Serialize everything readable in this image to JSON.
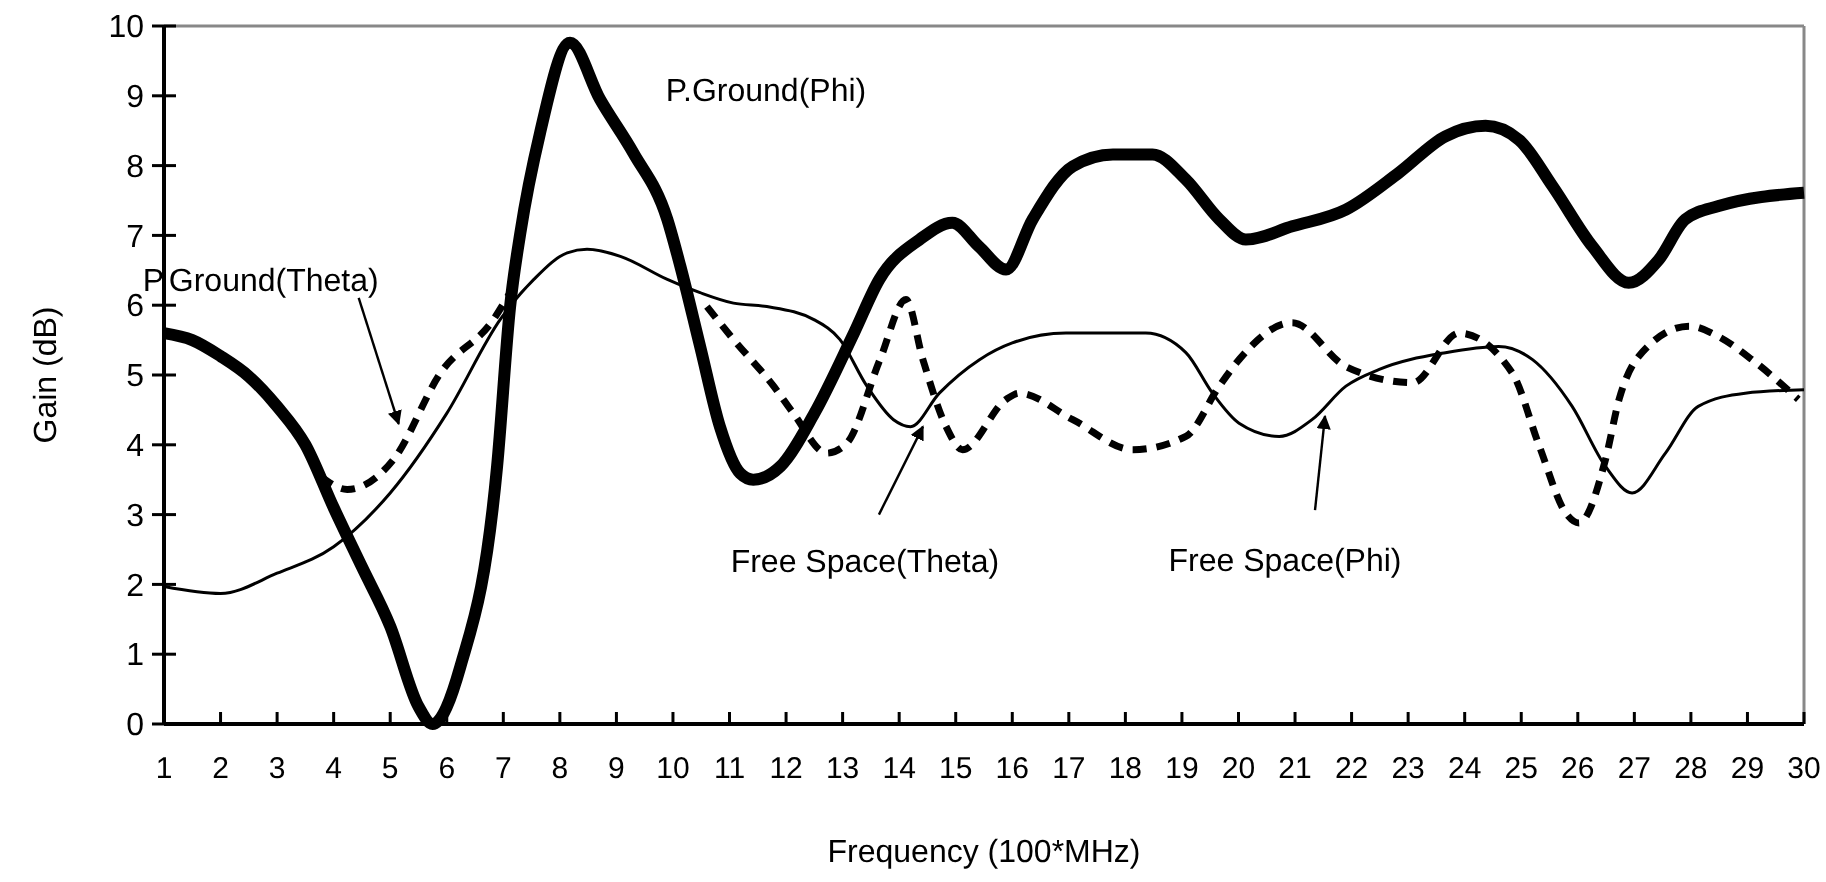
{
  "chart_data": {
    "type": "line",
    "xlabel": "Frequency (100*MHz)",
    "ylabel": "Gain (dB)",
    "xlim": [
      1,
      30
    ],
    "ylim": [
      0,
      10
    ],
    "xticks": [
      1,
      2,
      3,
      4,
      5,
      6,
      7,
      8,
      9,
      10,
      11,
      12,
      13,
      14,
      15,
      16,
      17,
      18,
      19,
      20,
      21,
      22,
      23,
      24,
      25,
      26,
      27,
      28,
      29,
      30
    ],
    "yticks": [
      0,
      1,
      2,
      3,
      4,
      5,
      6,
      7,
      8,
      9,
      10
    ],
    "grid": false,
    "series": [
      {
        "color": "#000000",
        "line_style": "solid",
        "x": [
          1,
          1.5,
          2,
          2.5,
          3,
          3.5,
          4,
          4.5,
          5,
          5.5,
          5.75,
          6.24,
          6.89,
          7.12,
          7.3,
          7.65,
          8.18,
          8.71,
          9.3,
          9.9,
          10.13,
          10.48,
          10.83,
          11.19,
          11.42,
          11.9,
          12.5,
          13.2,
          13.65,
          14.36,
          14.94,
          15.41,
          15.89,
          16.36,
          17.07,
          17.78,
          18.48,
          19.07,
          19.66,
          20.13,
          20.95,
          21.9,
          22.84,
          23.66,
          24.37,
          24.96,
          25.55,
          26.26,
          26.9,
          27.43,
          27.9,
          28.49,
          30
        ],
        "values": [
          5.6,
          5.5,
          5.27,
          4.98,
          4.55,
          4.0,
          3.1,
          2.25,
          1.4,
          0.25,
          0,
          0.82,
          3.69,
          5.98,
          7.03,
          8.47,
          9.76,
          8.95,
          8.18,
          7.23,
          6.56,
          5.41,
          4.26,
          3.59,
          3.5,
          3.69,
          4.45,
          5.6,
          6.37,
          6.94,
          7.18,
          6.84,
          6.51,
          7.23,
          7.99,
          8.16,
          8.16,
          7.8,
          7.23,
          6.94,
          7.13,
          7.37,
          7.9,
          8.42,
          8.57,
          8.37,
          7.71,
          6.84,
          6.32,
          6.65,
          7.23,
          7.42,
          7.61
        ]
      },
      {
        "color": "#000000",
        "line_style": "dashed",
        "x": [
          3.77,
          4.24,
          5.06,
          5.89,
          6.83,
          7.12,
          8.5,
          10.6,
          11.07,
          11.78,
          12.13,
          12.72,
          13.07,
          13.66,
          14.12,
          14.42,
          14.83,
          15.12,
          15.89,
          16.12,
          17.07,
          18.13,
          19.07,
          19.66,
          20.01,
          20.95,
          21.9,
          23.08,
          23.9,
          24.84,
          25.32,
          25.79,
          26.02,
          26.49,
          26.73,
          27.08,
          27.97,
          28.49,
          29.08,
          29.9
        ],
        "values": [
          3.55,
          3.36,
          3.79,
          5.03,
          5.8,
          6.18,
          null,
          5.98,
          5.51,
          4.84,
          4.45,
          3.88,
          4.02,
          5.22,
          6.08,
          5.22,
          4.26,
          3.93,
          4.65,
          4.74,
          4.36,
          3.93,
          4.12,
          4.84,
          5.22,
          5.75,
          5.12,
          4.89,
          5.6,
          5.03,
          3.98,
          3.02,
          2.88,
          3.79,
          4.65,
          5.27,
          5.7,
          5.55,
          5.22,
          4.65
        ]
      },
      {
        "color": "#000000",
        "line_style": "solid",
        "x": [
          1,
          2,
          3,
          4,
          5,
          6,
          6.95,
          7.54,
          8.13,
          8.48,
          9.07,
          9.9,
          10.48,
          11.07,
          11.66,
          12.5,
          12.95,
          13.43,
          13.9,
          14.2,
          14.71,
          15.42,
          16.0,
          16.95,
          18.36,
          19.07,
          19.54,
          20.01,
          20.72,
          21.3,
          21.9,
          22.49,
          23.66,
          24.6,
          25.2,
          25.9,
          26.49,
          26.96,
          27.55,
          28.13,
          28.96,
          30
        ],
        "values": [
          1.97,
          1.87,
          2.16,
          2.54,
          3.31,
          4.45,
          5.8,
          6.37,
          6.75,
          6.8,
          6.7,
          6.37,
          6.18,
          6.03,
          5.98,
          5.79,
          5.51,
          4.84,
          4.36,
          4.26,
          4.74,
          5.22,
          5.46,
          5.6,
          5.6,
          5.32,
          4.74,
          4.31,
          4.12,
          4.36,
          4.84,
          5.08,
          5.32,
          5.41,
          5.22,
          4.55,
          3.69,
          3.31,
          3.88,
          4.55,
          4.74,
          4.79
        ]
      }
    ],
    "annotations": [
      "P.Ground(Phi)",
      {
        "text": "P.Ground(Theta)",
        "x": 5.15,
        "y": 4.3
      },
      {
        "text": "Free Space(Theta)",
        "x": 14.42,
        "y": 4.26
      },
      {
        "text": "Free Space(Phi)",
        "x": 21.53,
        "y": 4.41
      }
    ]
  }
}
